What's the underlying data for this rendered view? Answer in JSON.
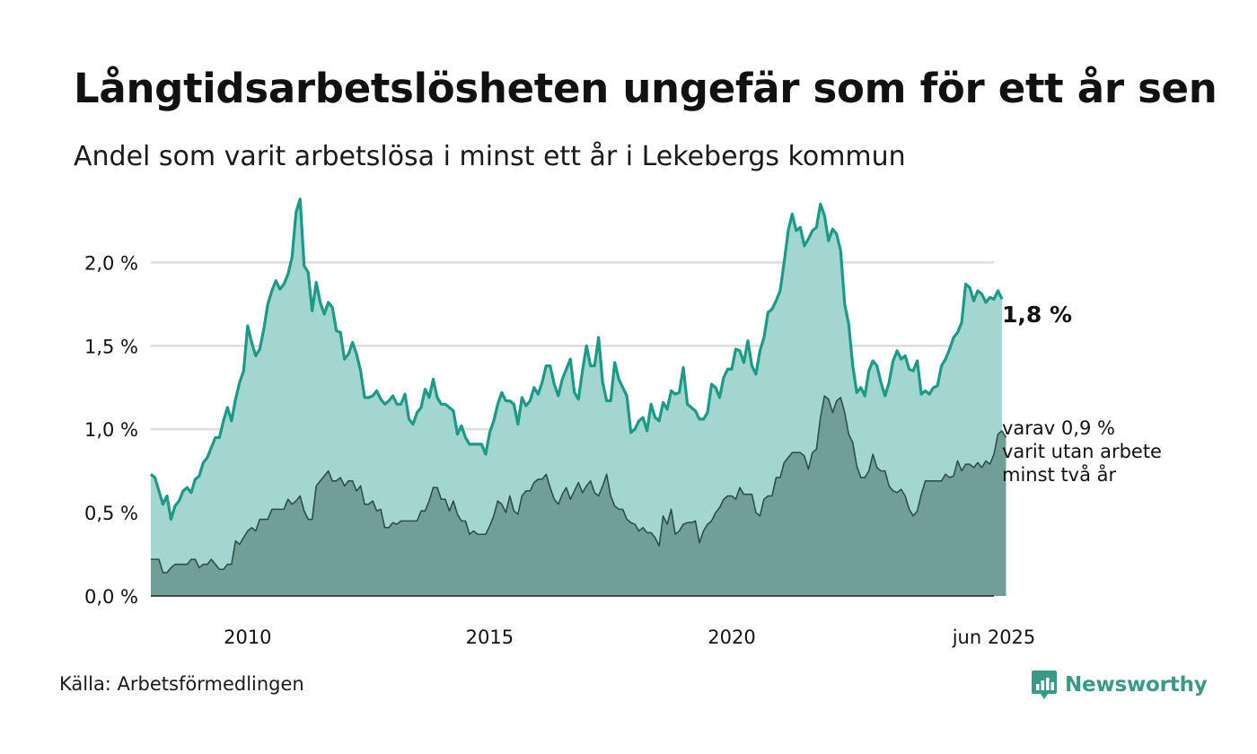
{
  "header": {
    "title": "Långtidsarbetslösheten ungefär som för ett år sen",
    "subtitle": "Andel som varit arbetslösa i minst ett år i Lekebergs kommun"
  },
  "footer": {
    "source": "Källa: Arbetsförmedlingen",
    "brand": "Newsworthy",
    "brand_icon": "newsworthy-logo-icon"
  },
  "colors": {
    "series1_line": "#1a9a87",
    "series1_fill": "#a4d6d1",
    "series2_line": "#2d4f49",
    "series2_fill": "#719f97",
    "grid": "#dddddd",
    "brand": "#3a9a8a"
  },
  "chart_data": {
    "type": "area",
    "x_start": "2008-01",
    "x_end": "2025-06",
    "x_step": "month",
    "xticks": [
      {
        "x": "2010-01",
        "label": "2010"
      },
      {
        "x": "2015-01",
        "label": "2015"
      },
      {
        "x": "2020-01",
        "label": "2020"
      },
      {
        "x": "2025-06",
        "label": "jun 2025"
      }
    ],
    "ylim": [
      0,
      2.4
    ],
    "yticks": [
      {
        "value": 0,
        "label": "0,0 %"
      },
      {
        "value": 0.5,
        "label": "0,5 %"
      },
      {
        "value": 1.0,
        "label": "1,0 %"
      },
      {
        "value": 1.5,
        "label": "1,5 %"
      },
      {
        "value": 2.0,
        "label": "2,0 %"
      }
    ],
    "grid": true,
    "series": [
      {
        "values": [
          0.73,
          0.71,
          0.63,
          0.55,
          0.6,
          0.46,
          0.54,
          0.57,
          0.63,
          0.65,
          0.62,
          0.7,
          0.72,
          0.8,
          0.83,
          0.89,
          0.95,
          0.95,
          1.05,
          1.13,
          1.05,
          1.18,
          1.28,
          1.35,
          1.62,
          1.52,
          1.44,
          1.48,
          1.6,
          1.75,
          1.83,
          1.89,
          1.84,
          1.87,
          1.93,
          2.03,
          2.3,
          2.38,
          1.98,
          1.94,
          1.71,
          1.88,
          1.76,
          1.69,
          1.76,
          1.73,
          1.59,
          1.58,
          1.42,
          1.45,
          1.52,
          1.45,
          1.35,
          1.19,
          1.19,
          1.2,
          1.23,
          1.18,
          1.15,
          1.17,
          1.2,
          1.15,
          1.15,
          1.21,
          1.06,
          1.03,
          1.1,
          1.13,
          1.24,
          1.19,
          1.3,
          1.19,
          1.15,
          1.15,
          1.13,
          1.11,
          0.97,
          1.02,
          0.95,
          0.91,
          0.91,
          0.91,
          0.91,
          0.85,
          0.98,
          1.05,
          1.15,
          1.22,
          1.17,
          1.17,
          1.15,
          1.03,
          1.19,
          1.14,
          1.17,
          1.25,
          1.21,
          1.28,
          1.38,
          1.38,
          1.27,
          1.2,
          1.3,
          1.36,
          1.42,
          1.22,
          1.18,
          1.35,
          1.5,
          1.38,
          1.38,
          1.55,
          1.28,
          1.17,
          1.17,
          1.4,
          1.3,
          1.25,
          1.2,
          0.98,
          1.0,
          1.05,
          1.07,
          0.99,
          1.15,
          1.07,
          1.05,
          1.16,
          1.12,
          1.23,
          1.21,
          1.22,
          1.37,
          1.15,
          1.13,
          1.11,
          1.06,
          1.06,
          1.1,
          1.27,
          1.25,
          1.19,
          1.31,
          1.36,
          1.36,
          1.48,
          1.47,
          1.4,
          1.53,
          1.38,
          1.33,
          1.47,
          1.55,
          1.7,
          1.72,
          1.77,
          1.83,
          2.0,
          2.19,
          2.29,
          2.19,
          2.21,
          2.1,
          2.14,
          2.19,
          2.21,
          2.35,
          2.28,
          2.13,
          2.2,
          2.17,
          2.07,
          1.75,
          1.63,
          1.38,
          1.22,
          1.25,
          1.2,
          1.35,
          1.41,
          1.38,
          1.28,
          1.2,
          1.28,
          1.41,
          1.47,
          1.42,
          1.44,
          1.36,
          1.35,
          1.41,
          1.21,
          1.23,
          1.21,
          1.25,
          1.26,
          1.38,
          1.42,
          1.48,
          1.55,
          1.58,
          1.64,
          1.87,
          1.85,
          1.77,
          1.83,
          1.81,
          1.76,
          1.79,
          1.78,
          1.83,
          1.78
        ]
      },
      {
        "values": [
          0.22,
          0.22,
          0.22,
          0.14,
          0.14,
          0.17,
          0.19,
          0.19,
          0.19,
          0.19,
          0.22,
          0.22,
          0.17,
          0.19,
          0.19,
          0.22,
          0.19,
          0.16,
          0.16,
          0.19,
          0.19,
          0.33,
          0.31,
          0.35,
          0.39,
          0.41,
          0.39,
          0.46,
          0.46,
          0.46,
          0.52,
          0.52,
          0.52,
          0.52,
          0.58,
          0.55,
          0.57,
          0.6,
          0.51,
          0.46,
          0.46,
          0.66,
          0.69,
          0.72,
          0.75,
          0.69,
          0.69,
          0.71,
          0.66,
          0.69,
          0.69,
          0.63,
          0.66,
          0.55,
          0.55,
          0.57,
          0.51,
          0.52,
          0.41,
          0.41,
          0.44,
          0.43,
          0.45,
          0.45,
          0.45,
          0.45,
          0.45,
          0.51,
          0.51,
          0.57,
          0.65,
          0.65,
          0.58,
          0.58,
          0.51,
          0.57,
          0.49,
          0.45,
          0.45,
          0.37,
          0.39,
          0.37,
          0.37,
          0.37,
          0.42,
          0.48,
          0.57,
          0.55,
          0.5,
          0.6,
          0.51,
          0.49,
          0.6,
          0.63,
          0.63,
          0.68,
          0.7,
          0.7,
          0.73,
          0.65,
          0.58,
          0.55,
          0.61,
          0.65,
          0.58,
          0.63,
          0.68,
          0.62,
          0.66,
          0.69,
          0.62,
          0.6,
          0.66,
          0.73,
          0.6,
          0.54,
          0.52,
          0.52,
          0.46,
          0.44,
          0.43,
          0.39,
          0.41,
          0.38,
          0.38,
          0.35,
          0.3,
          0.48,
          0.43,
          0.52,
          0.37,
          0.39,
          0.43,
          0.44,
          0.44,
          0.45,
          0.32,
          0.39,
          0.43,
          0.45,
          0.5,
          0.53,
          0.58,
          0.6,
          0.6,
          0.58,
          0.65,
          0.61,
          0.61,
          0.61,
          0.5,
          0.48,
          0.58,
          0.6,
          0.6,
          0.71,
          0.71,
          0.8,
          0.83,
          0.86,
          0.86,
          0.86,
          0.84,
          0.76,
          0.86,
          0.88,
          1.07,
          1.2,
          1.18,
          1.1,
          1.17,
          1.19,
          1.1,
          0.97,
          0.92,
          0.78,
          0.71,
          0.71,
          0.75,
          0.85,
          0.77,
          0.75,
          0.75,
          0.66,
          0.63,
          0.62,
          0.64,
          0.6,
          0.52,
          0.48,
          0.51,
          0.61,
          0.69,
          0.69,
          0.69,
          0.69,
          0.69,
          0.73,
          0.71,
          0.72,
          0.81,
          0.75,
          0.79,
          0.79,
          0.77,
          0.8,
          0.77,
          0.81,
          0.79,
          0.85,
          0.97,
          0.99,
          0.95
        ]
      }
    ],
    "annotations": {
      "series1_end_label": "1,8 %",
      "series2_end_label_lines": [
        "varav 0,9 %",
        "varit utan arbete",
        "minst två år"
      ]
    }
  }
}
